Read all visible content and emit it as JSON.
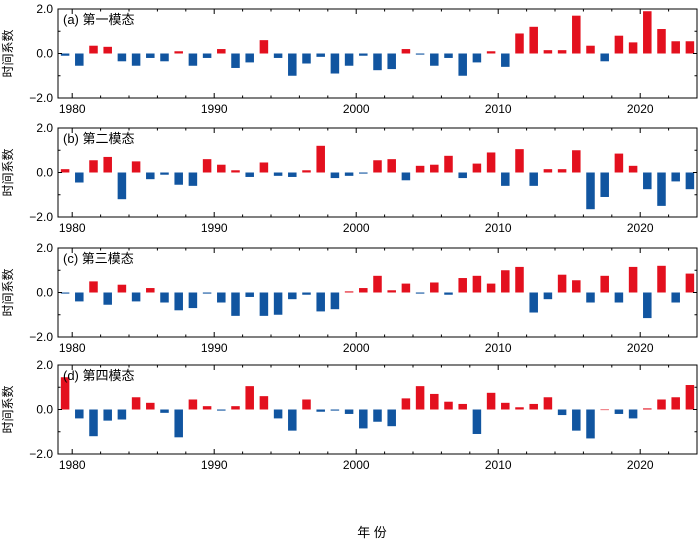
{
  "chart_data": {
    "type": "bar",
    "xlabel": "年 份",
    "ylabel": "时间系数",
    "years": [
      1979,
      1980,
      1981,
      1982,
      1983,
      1984,
      1985,
      1986,
      1987,
      1988,
      1989,
      1990,
      1991,
      1992,
      1993,
      1994,
      1995,
      1996,
      1997,
      1998,
      1999,
      2000,
      2001,
      2002,
      2003,
      2004,
      2005,
      2006,
      2007,
      2008,
      2009,
      2010,
      2011,
      2012,
      2013,
      2014,
      2015,
      2016,
      2017,
      2018,
      2019,
      2020,
      2021,
      2022,
      2023
    ],
    "xlim": [
      1979,
      2024
    ],
    "ylim": [
      -2.0,
      2.0
    ],
    "x_ticks": [
      1980,
      1990,
      2000,
      2010,
      2020
    ],
    "y_ticks": [
      -2.0,
      0.0,
      2.0
    ],
    "y_tick_labels": [
      "−2.0",
      "0.0",
      "2.0"
    ],
    "colors": {
      "positive": "#e3101e",
      "negative": "#1155a0"
    },
    "series": [
      {
        "label": "(a) 第一模态",
        "values": [
          -0.1,
          -0.55,
          0.35,
          0.3,
          -0.35,
          -0.55,
          -0.2,
          -0.35,
          0.1,
          -0.55,
          -0.2,
          0.2,
          -0.65,
          -0.4,
          0.6,
          -0.2,
          -1.0,
          -0.45,
          -0.15,
          -0.9,
          -0.55,
          -0.1,
          -0.75,
          -0.7,
          0.2,
          -0.05,
          -0.55,
          -0.2,
          -1.0,
          -0.4,
          0.1,
          -0.6,
          0.9,
          1.2,
          0.15,
          0.15,
          1.7,
          0.35,
          -0.35,
          0.8,
          0.5,
          1.9,
          1.1,
          0.55,
          0.55
        ]
      },
      {
        "label": "(b) 第二模态",
        "values": [
          0.15,
          -0.45,
          0.55,
          0.7,
          -1.2,
          0.5,
          -0.3,
          -0.1,
          -0.55,
          -0.6,
          0.6,
          0.35,
          0.1,
          -0.2,
          0.45,
          -0.15,
          -0.2,
          0.1,
          1.2,
          -0.25,
          -0.15,
          -0.05,
          0.55,
          0.6,
          -0.35,
          0.3,
          0.35,
          0.75,
          -0.25,
          0.4,
          0.9,
          -0.6,
          1.05,
          -0.6,
          0.15,
          0.15,
          1.0,
          -1.65,
          -1.1,
          0.85,
          0.3,
          -0.75,
          -1.5,
          -0.4,
          -0.75
        ]
      },
      {
        "label": "(c) 第三模态",
        "values": [
          -0.05,
          -0.4,
          0.5,
          -0.55,
          0.35,
          -0.4,
          0.2,
          -0.45,
          -0.8,
          -0.7,
          -0.05,
          -0.45,
          -1.05,
          -0.2,
          -1.05,
          -1.0,
          -0.3,
          -0.1,
          -0.85,
          -0.75,
          0.05,
          0.2,
          0.75,
          0.1,
          0.4,
          -0.05,
          0.45,
          -0.1,
          0.65,
          0.75,
          0.4,
          1.0,
          1.15,
          -0.9,
          -0.3,
          0.8,
          0.55,
          -0.45,
          0.75,
          -0.45,
          1.15,
          -1.15,
          1.2,
          -0.45,
          0.85
        ]
      },
      {
        "label": "(d) 第四模态",
        "values": [
          1.45,
          -0.4,
          -1.2,
          -0.5,
          -0.45,
          0.55,
          0.3,
          -0.15,
          -1.25,
          0.45,
          0.15,
          -0.05,
          0.15,
          1.05,
          0.6,
          -0.4,
          -0.95,
          0.45,
          -0.1,
          -0.05,
          -0.2,
          -0.85,
          -0.55,
          -0.75,
          0.5,
          1.05,
          0.7,
          0.35,
          0.25,
          -1.1,
          0.75,
          0.3,
          0.1,
          0.25,
          0.55,
          -0.25,
          -0.95,
          -1.3,
          0.0,
          -0.2,
          -0.4,
          0.05,
          0.45,
          0.55,
          1.1
        ]
      }
    ]
  }
}
